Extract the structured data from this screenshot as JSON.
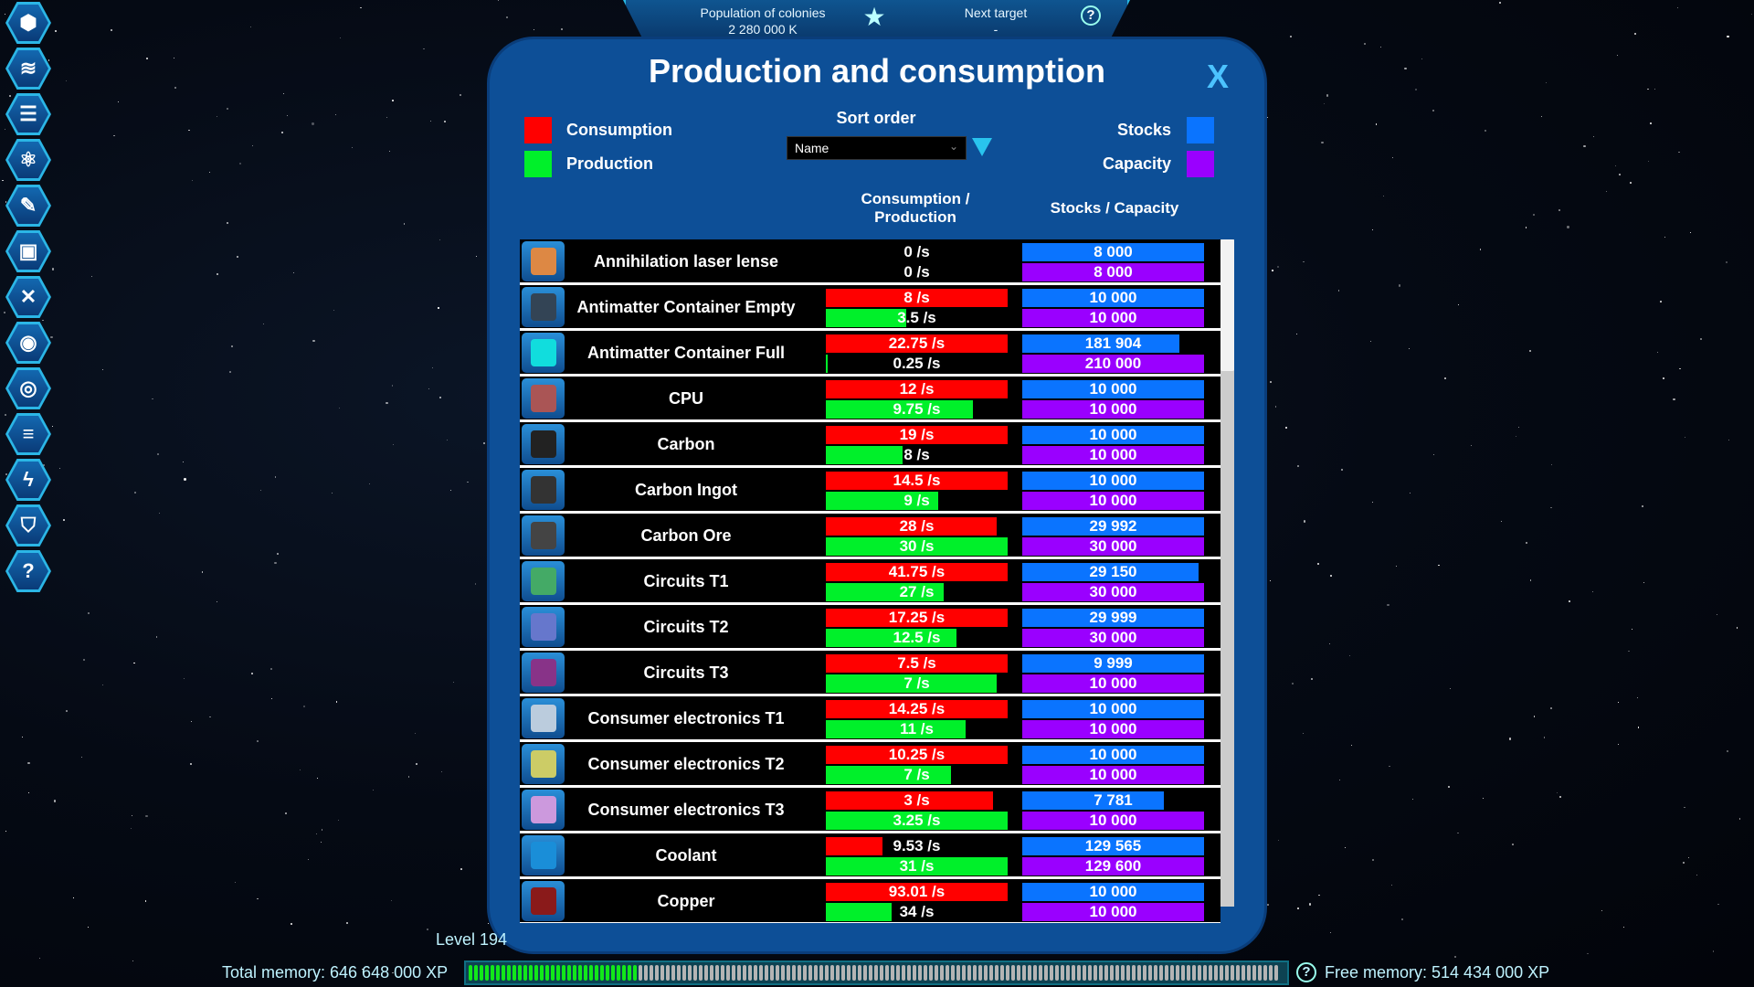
{
  "banner": {
    "population_label": "Population of colonies",
    "population_value": "2 280 000 K",
    "next_target_label": "Next target",
    "next_target_value": "-",
    "help": "?"
  },
  "sidebar": {
    "icons": [
      "hexagons-icon",
      "ships-icon",
      "list-icon",
      "atom-icon",
      "planet-icon",
      "map-icon",
      "tools-icon",
      "eye-icon",
      "galaxy-icon",
      "database-icon",
      "energy-icon",
      "shield-icon",
      "help-icon"
    ],
    "glyphs": [
      "⬢",
      "≋",
      "☰",
      "⚛",
      "✎",
      "▣",
      "✕",
      "◉",
      "◎",
      "≡",
      "ϟ",
      "⛉",
      "?"
    ]
  },
  "panel": {
    "title": "Production and consumption",
    "close": "X",
    "legend": {
      "consumption": "Consumption",
      "production": "Production",
      "stocks": "Stocks",
      "capacity": "Capacity"
    },
    "colors": {
      "consumption": "#ff0000",
      "production": "#00f02a",
      "stocks": "#0a74ff",
      "capacity": "#9a00ff"
    },
    "sort_label": "Sort order",
    "sort_value": "Name",
    "col_consumption": "Consumption / Production",
    "col_stocks": "Stocks / Capacity"
  },
  "rows": [
    {
      "name": "Annihilation laser lense",
      "consumption": "0 /s",
      "production": "0 /s",
      "cons_fill": 0,
      "prod_fill": 0,
      "stocks": "8 000",
      "capacity": "8 000",
      "stock_fill": 1,
      "icon_color": "#d84"
    },
    {
      "name": "Antimatter Container Empty",
      "consumption": "8 /s",
      "production": "3.5 /s",
      "cons_fill": 1,
      "prod_fill": 0.44,
      "stocks": "10 000",
      "capacity": "10 000",
      "stock_fill": 1,
      "icon_color": "#345"
    },
    {
      "name": "Antimatter Container Full",
      "consumption": "22.75 /s",
      "production": "0.25 /s",
      "cons_fill": 1,
      "prod_fill": 0.01,
      "stocks": "181 904",
      "capacity": "210 000",
      "stock_fill": 0.866,
      "icon_color": "#1dd"
    },
    {
      "name": "CPU",
      "consumption": "12 /s",
      "production": "9.75 /s",
      "cons_fill": 1,
      "prod_fill": 0.81,
      "stocks": "10 000",
      "capacity": "10 000",
      "stock_fill": 1,
      "icon_color": "#a55"
    },
    {
      "name": "Carbon",
      "consumption": "19 /s",
      "production": "8 /s",
      "cons_fill": 1,
      "prod_fill": 0.42,
      "stocks": "10 000",
      "capacity": "10 000",
      "stock_fill": 1,
      "icon_color": "#222"
    },
    {
      "name": "Carbon Ingot",
      "consumption": "14.5 /s",
      "production": "9 /s",
      "cons_fill": 1,
      "prod_fill": 0.62,
      "stocks": "10 000",
      "capacity": "10 000",
      "stock_fill": 1,
      "icon_color": "#333"
    },
    {
      "name": "Carbon Ore",
      "consumption": "28 /s",
      "production": "30 /s",
      "cons_fill": 0.94,
      "prod_fill": 1,
      "stocks": "29 992",
      "capacity": "30 000",
      "stock_fill": 1,
      "icon_color": "#444"
    },
    {
      "name": "Circuits T1",
      "consumption": "41.75 /s",
      "production": "27 /s",
      "cons_fill": 1,
      "prod_fill": 0.65,
      "stocks": "29 150",
      "capacity": "30 000",
      "stock_fill": 0.97,
      "icon_color": "#4a6"
    },
    {
      "name": "Circuits T2",
      "consumption": "17.25 /s",
      "production": "12.5 /s",
      "cons_fill": 1,
      "prod_fill": 0.72,
      "stocks": "29 999",
      "capacity": "30 000",
      "stock_fill": 1,
      "icon_color": "#67c"
    },
    {
      "name": "Circuits T3",
      "consumption": "7.5 /s",
      "production": "7 /s",
      "cons_fill": 1,
      "prod_fill": 0.94,
      "stocks": "9 999",
      "capacity": "10 000",
      "stock_fill": 1,
      "icon_color": "#838"
    },
    {
      "name": "Consumer electronics T1",
      "consumption": "14.25 /s",
      "production": "11 /s",
      "cons_fill": 1,
      "prod_fill": 0.77,
      "stocks": "10 000",
      "capacity": "10 000",
      "stock_fill": 1,
      "icon_color": "#bcd"
    },
    {
      "name": "Consumer electronics T2",
      "consumption": "10.25 /s",
      "production": "7 /s",
      "cons_fill": 1,
      "prod_fill": 0.69,
      "stocks": "10 000",
      "capacity": "10 000",
      "stock_fill": 1,
      "icon_color": "#cc6"
    },
    {
      "name": "Consumer electronics T3",
      "consumption": "3 /s",
      "production": "3.25 /s",
      "cons_fill": 0.92,
      "prod_fill": 1,
      "stocks": "7 781",
      "capacity": "10 000",
      "stock_fill": 0.78,
      "icon_color": "#c9d"
    },
    {
      "name": "Coolant",
      "consumption": "9.53 /s",
      "production": "31 /s",
      "cons_fill": 0.31,
      "prod_fill": 1,
      "stocks": "129 565",
      "capacity": "129 600",
      "stock_fill": 1,
      "icon_color": "#1a8ed8"
    },
    {
      "name": "Copper",
      "consumption": "93.01 /s",
      "production": "34 /s",
      "cons_fill": 1,
      "prod_fill": 0.36,
      "stocks": "10 000",
      "capacity": "10 000",
      "stock_fill": 1,
      "icon_color": "#8a1a1a"
    }
  ],
  "footer": {
    "level": "Level 194",
    "total_memory": "Total memory: 646 648 000 XP",
    "free_memory": "Free memory: 514 434 000 XP",
    "memory_used_fraction": 0.204,
    "help": "?"
  }
}
